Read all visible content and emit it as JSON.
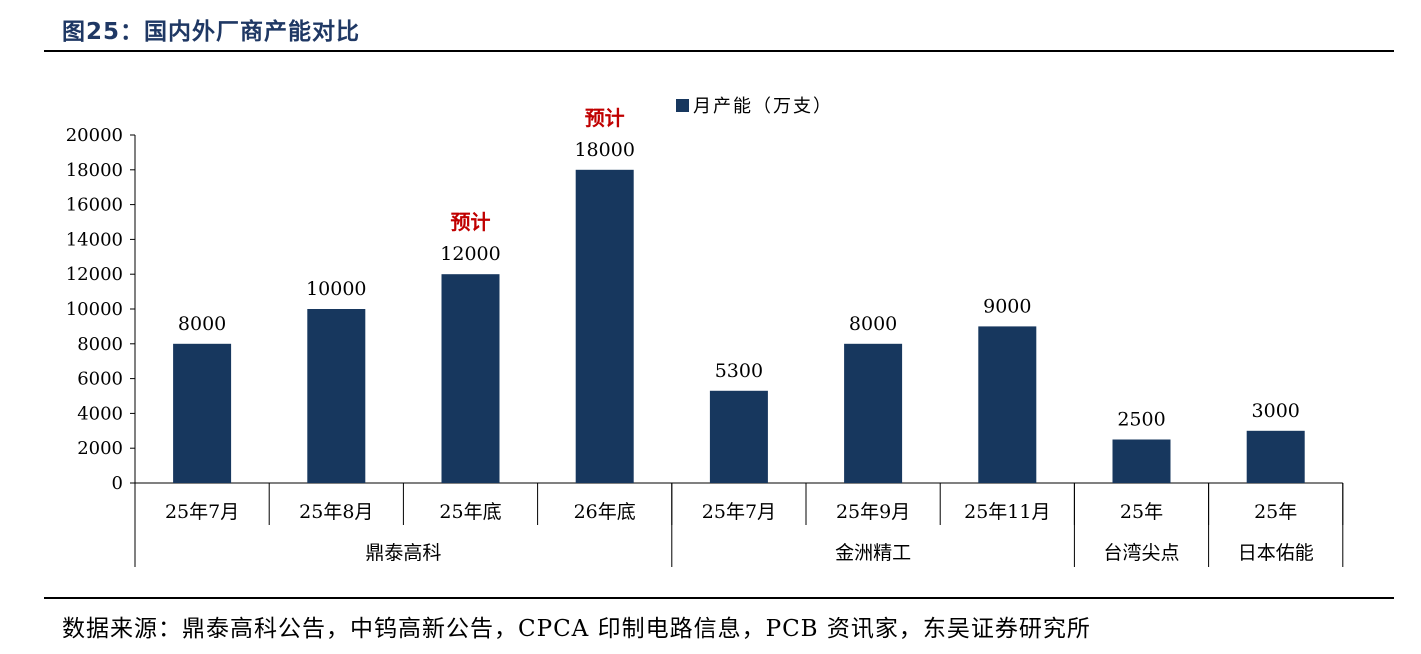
{
  "figure": {
    "title": "图25：国内外厂商产能对比",
    "source": "数据来源：鼎泰高科公告，中钨高新公告，CPCA 印制电路信息，PCB 资讯家，东吴证券研究所"
  },
  "chart_data": {
    "type": "bar",
    "legend": {
      "label": "月产能（万支）",
      "position": "top-center"
    },
    "ylim": [
      0,
      20000
    ],
    "yticks": [
      0,
      2000,
      4000,
      6000,
      8000,
      10000,
      12000,
      14000,
      16000,
      18000,
      20000
    ],
    "bar_color": "#17375e",
    "annotation_color": "#c00000",
    "categories": [
      "25年7月",
      "25年8月",
      "25年底",
      "26年底",
      "25年7月",
      "25年9月",
      "25年11月",
      "25年",
      "25年"
    ],
    "values": [
      8000,
      10000,
      12000,
      18000,
      5300,
      8000,
      9000,
      2500,
      3000
    ],
    "annotations": [
      "",
      "",
      "预计",
      "预计",
      "",
      "",
      "",
      "",
      ""
    ],
    "groups": [
      {
        "name": "鼎泰高科",
        "span": [
          0,
          3
        ]
      },
      {
        "name": "金洲精工",
        "span": [
          4,
          6
        ]
      },
      {
        "name": "台湾尖点",
        "span": [
          7,
          7
        ]
      },
      {
        "name": "日本佑能",
        "span": [
          8,
          8
        ]
      }
    ]
  }
}
